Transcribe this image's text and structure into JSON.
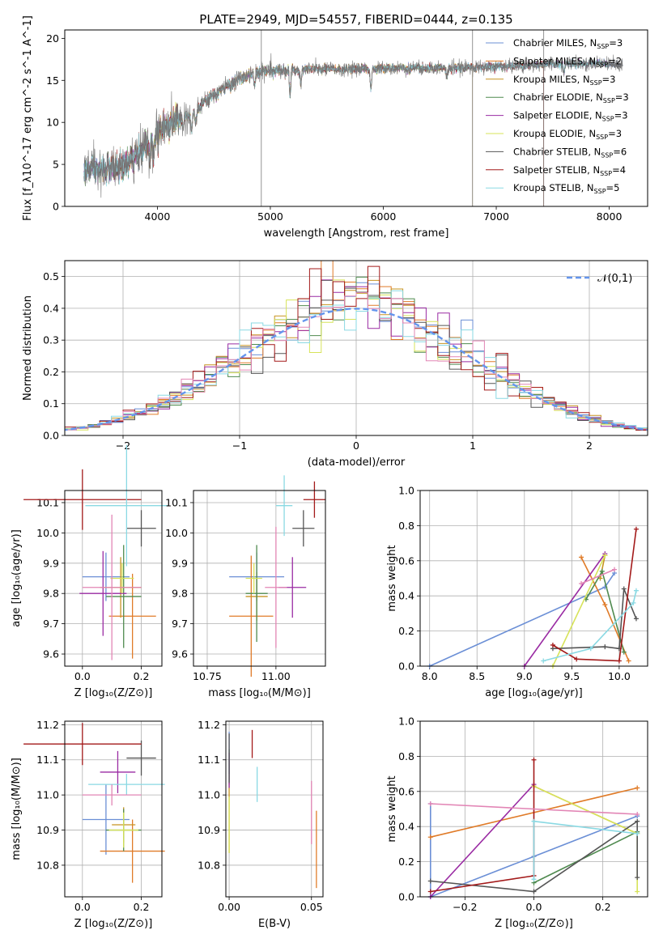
{
  "figure": {
    "title": "PLATE=2949, MJD=54557, FIBERID=0444, z=0.135"
  },
  "colors": {
    "series": [
      "#6b8fd6",
      "#e07b28",
      "#c79422",
      "#4f8a4f",
      "#9a2ba3",
      "#d7e35a",
      "#555555",
      "#a31a1a",
      "#8ad9e3"
    ],
    "pink": "#e285b5",
    "gauss": "#6495ed",
    "grid": "#b0b0b0"
  },
  "chart_data": [
    {
      "id": "spectrum",
      "type": "line",
      "title": "PLATE=2949, MJD=54557, FIBERID=0444, z=0.135",
      "xlabel": "wavelength [Angstrom, rest frame]",
      "ylabel": "Flux [f_λ10^-17 erg cm^-2 s^-1 A^-1]",
      "xlim": [
        3180,
        8340
      ],
      "ylim": [
        0,
        21
      ],
      "xticks": [
        4000,
        5000,
        6000,
        7000,
        8000
      ],
      "yticks": [
        0,
        5,
        10,
        15,
        20
      ],
      "grid": false,
      "legend_position": "upper-right",
      "legend": [
        {
          "main": "Chabrier MILES, N",
          "sub": "SSP",
          "tail": "=3"
        },
        {
          "main": "Salpeter MILES, N",
          "sub": "SSP",
          "tail": "=2"
        },
        {
          "main": "Kroupa MILES, N",
          "sub": "SSP",
          "tail": "=3"
        },
        {
          "main": "Chabrier ELODIE, N",
          "sub": "SSP",
          "tail": "=3"
        },
        {
          "main": "Salpeter ELODIE, N",
          "sub": "SSP",
          "tail": "=3"
        },
        {
          "main": "Kroupa ELODIE, N",
          "sub": "SSP",
          "tail": "=3"
        },
        {
          "main": "Chabrier STELIB, N",
          "sub": "SSP",
          "tail": "=6"
        },
        {
          "main": "Salpeter STELIB, N",
          "sub": "SSP",
          "tail": "=4"
        },
        {
          "main": "Kroupa STELIB, N",
          "sub": "SSP",
          "tail": "=5"
        }
      ],
      "continuum_nodes": [
        [
          3350,
          4.3
        ],
        [
          3500,
          4.4
        ],
        [
          3650,
          4.6
        ],
        [
          3800,
          5.6
        ],
        [
          3950,
          8.4
        ],
        [
          4100,
          10.1
        ],
        [
          4300,
          11.0
        ],
        [
          4500,
          13.2
        ],
        [
          4700,
          15.0
        ],
        [
          4900,
          16.0
        ],
        [
          5100,
          16.2
        ],
        [
          5300,
          16.3
        ],
        [
          5500,
          16.3
        ],
        [
          5700,
          16.3
        ],
        [
          5900,
          16.4
        ],
        [
          6100,
          16.5
        ],
        [
          6300,
          16.4
        ],
        [
          6500,
          16.4
        ],
        [
          6700,
          16.5
        ],
        [
          6900,
          16.6
        ],
        [
          7100,
          16.7
        ],
        [
          7300,
          16.8
        ],
        [
          7500,
          17.0
        ],
        [
          7700,
          17.0
        ],
        [
          7900,
          17.1
        ],
        [
          8100,
          16.8
        ]
      ],
      "absorption_features": [
        [
          3933,
          3.0
        ],
        [
          3968,
          2.6
        ],
        [
          4102,
          1.5
        ],
        [
          4227,
          1.2
        ],
        [
          4304,
          2.0
        ],
        [
          4340,
          1.5
        ],
        [
          4861,
          1.4
        ],
        [
          5175,
          3.2
        ],
        [
          5270,
          1.6
        ],
        [
          5890,
          2.4
        ],
        [
          6563,
          1.2
        ],
        [
          7600,
          1.2
        ]
      ],
      "model_x_range": [
        [
          3350,
          8120
        ],
        [
          3540,
          7420
        ],
        [
          3350,
          6790
        ],
        [
          3350,
          8000
        ],
        [
          3350,
          8000
        ],
        [
          3900,
          6790
        ],
        [
          3350,
          8120
        ],
        [
          3540,
          7420
        ],
        [
          3350,
          8000
        ]
      ],
      "vertical_markers": [
        4920,
        6790,
        7420
      ]
    },
    {
      "id": "residual_hist",
      "type": "histogram",
      "xlabel": "(data-model)/error",
      "ylabel": "Normed distribution",
      "xlim": [
        -2.5,
        2.5
      ],
      "ylim": [
        0,
        0.55
      ],
      "xticks": [
        -2,
        -1,
        0,
        1,
        2
      ],
      "yticks": [
        0.0,
        0.1,
        0.2,
        0.3,
        0.4,
        0.5
      ],
      "grid": true,
      "legend_position": "upper-right",
      "legend_gauss": "𝒩(0,1)",
      "bin_width": 0.1,
      "gaussian": {
        "mu": 0,
        "sigma": 1
      }
    },
    {
      "id": "age_vs_Z",
      "type": "errorbar",
      "xlabel": "Z [log₁₀(Z/Z⊙)]",
      "ylabel": "age  [log₁₀(age/yr)]",
      "xlim": [
        -0.06,
        0.27
      ],
      "ylim": [
        9.56,
        10.14
      ],
      "xticks": [
        0.0,
        0.2
      ],
      "yticks": [
        9.6,
        9.7,
        9.8,
        9.9,
        10.0,
        10.1
      ],
      "grid": true,
      "points": [
        {
          "x": 0.08,
          "xerr": 0.08,
          "y": 9.855,
          "yerr": 0.08
        },
        {
          "x": 0.17,
          "xerr": 0.08,
          "y": 9.725,
          "yerr": 0.14
        },
        {
          "x": 0.13,
          "xerr": 0.07,
          "y": 9.82,
          "yerr": 0.1
        },
        {
          "x": 0.14,
          "xerr": 0.06,
          "y": 9.79,
          "yerr": 0.17
        },
        {
          "x": 0.07,
          "xerr": 0.08,
          "y": 9.8,
          "yerr": 0.14
        },
        {
          "x": 0.135,
          "xerr": 0.04,
          "y": 9.85,
          "yerr": 0.05
        },
        {
          "x": 0.2,
          "xerr": 0.05,
          "y": 10.015,
          "yerr": 0.06
        },
        {
          "x": 0.0,
          "xerr": 0.2,
          "y": 10.11,
          "yerr": 0.1
        },
        {
          "x": 0.15,
          "xerr": 0.14,
          "y": 10.09,
          "yerr": 0.2
        },
        {
          "x": 0.1,
          "xerr": 0.1,
          "y": 9.82,
          "yerr": 0.24
        }
      ]
    },
    {
      "id": "age_vs_mass",
      "type": "errorbar",
      "xlabel": "mass [log₁₀(M/M⊙)]",
      "ylabel": "",
      "xlim": [
        10.7,
        11.18
      ],
      "ylim": [
        9.56,
        10.14
      ],
      "xticks": [
        10.75,
        11.0
      ],
      "yticks": [
        9.6,
        9.7,
        9.8,
        9.9,
        10.0,
        10.1
      ],
      "grid": true,
      "points": [
        {
          "x": 10.93,
          "xerr": 0.1,
          "y": 9.855,
          "yerr": 0.08
        },
        {
          "x": 10.91,
          "xerr": 0.08,
          "y": 9.725,
          "yerr": 0.2
        },
        {
          "x": 10.93,
          "xerr": 0.04,
          "y": 9.79,
          "yerr": 0.08
        },
        {
          "x": 10.93,
          "xerr": 0.04,
          "y": 9.8,
          "yerr": 0.16
        },
        {
          "x": 11.06,
          "xerr": 0.05,
          "y": 9.82,
          "yerr": 0.1
        },
        {
          "x": 10.92,
          "xerr": 0.03,
          "y": 9.85,
          "yerr": 0.05
        },
        {
          "x": 11.1,
          "xerr": 0.04,
          "y": 10.015,
          "yerr": 0.06
        },
        {
          "x": 11.14,
          "xerr": 0.04,
          "y": 10.11,
          "yerr": 0.06
        },
        {
          "x": 11.03,
          "xerr": 0.03,
          "y": 10.09,
          "yerr": 0.1
        },
        {
          "x": 11.0,
          "xerr": 0.04,
          "y": 9.82,
          "yerr": 0.2
        }
      ]
    },
    {
      "id": "weight_vs_age",
      "type": "line",
      "xlabel": "age  [log₁₀(age/yr)]",
      "ylabel": "mass weight",
      "xlim": [
        7.9,
        10.3
      ],
      "ylim": [
        0,
        1
      ],
      "xticks": [
        8.0,
        8.5,
        9.0,
        9.5,
        10.0
      ],
      "yticks": [
        0.0,
        0.2,
        0.4,
        0.6,
        0.8,
        1.0
      ],
      "grid": true,
      "series": [
        {
          "color": 0,
          "x": [
            8.0,
            9.85,
            9.95
          ],
          "y": [
            0.0,
            0.45,
            0.53
          ]
        },
        {
          "color": 1,
          "x": [
            9.6,
            9.85,
            10.1
          ],
          "y": [
            0.62,
            0.35,
            0.03
          ]
        },
        {
          "color": 2,
          "x": [
            9.8,
            9.85
          ],
          "y": [
            0.5,
            0.63
          ]
        },
        {
          "color": 3,
          "x": [
            9.65,
            9.82,
            10.05
          ],
          "y": [
            0.38,
            0.54,
            0.08
          ]
        },
        {
          "color": 4,
          "x": [
            9.0,
            9.85
          ],
          "y": [
            0.0,
            0.64
          ]
        },
        {
          "color": 5,
          "x": [
            9.3,
            9.85
          ],
          "y": [
            0.0,
            0.63
          ]
        },
        {
          "color": 6,
          "x": [
            9.3,
            9.85,
            10.0,
            10.05,
            10.18
          ],
          "y": [
            0.1,
            0.11,
            0.1,
            0.44,
            0.27
          ]
        },
        {
          "color": 7,
          "x": [
            9.3,
            9.55,
            10.0,
            10.18
          ],
          "y": [
            0.12,
            0.04,
            0.03,
            0.78
          ]
        },
        {
          "color": 8,
          "x": [
            9.2,
            9.7,
            10.15,
            10.18
          ],
          "y": [
            0.03,
            0.1,
            0.36,
            0.43
          ]
        },
        {
          "color": "pink",
          "x": [
            9.6,
            9.95
          ],
          "y": [
            0.47,
            0.55
          ]
        }
      ]
    },
    {
      "id": "mass_vs_Z",
      "type": "errorbar",
      "xlabel": "Z [log₁₀(Z/Z⊙)]",
      "ylabel": "mass [log₁₀(M/M⊙)]",
      "xlim": [
        -0.06,
        0.27
      ],
      "ylim": [
        10.71,
        11.21
      ],
      "xticks": [
        0.0,
        0.2
      ],
      "yticks": [
        10.8,
        10.9,
        11.0,
        11.1,
        11.2
      ],
      "grid": true,
      "points": [
        {
          "x": 0.08,
          "xerr": 0.08,
          "y": 10.93,
          "yerr": 0.1
        },
        {
          "x": 0.17,
          "xerr": 0.11,
          "y": 10.84,
          "yerr": 0.09
        },
        {
          "x": 0.14,
          "xerr": 0.04,
          "y": 10.915,
          "yerr": 0.05
        },
        {
          "x": 0.14,
          "xerr": 0.06,
          "y": 10.9,
          "yerr": 0.06
        },
        {
          "x": 0.12,
          "xerr": 0.06,
          "y": 11.065,
          "yerr": 0.06
        },
        {
          "x": 0.14,
          "xerr": 0.05,
          "y": 10.9,
          "yerr": 0.05
        },
        {
          "x": 0.2,
          "xerr": 0.05,
          "y": 11.105,
          "yerr": 0.05
        },
        {
          "x": 0.0,
          "xerr": 0.2,
          "y": 11.145,
          "yerr": 0.06
        },
        {
          "x": 0.15,
          "xerr": 0.13,
          "y": 11.03,
          "yerr": 0.03
        },
        {
          "x": 0.1,
          "xerr": 0.1,
          "y": 11.0,
          "yerr": 0.03
        }
      ]
    },
    {
      "id": "mass_vs_ebv",
      "type": "errorbar",
      "xlabel": "E(B-V)",
      "ylabel": "",
      "xlim": [
        -0.002,
        0.057
      ],
      "ylim": [
        10.71,
        11.21
      ],
      "xticks": [
        0.0,
        0.05
      ],
      "yticks": [
        10.8,
        10.9,
        11.0,
        11.1,
        11.2
      ],
      "grid": true,
      "points": [
        {
          "x": 0.0,
          "xerr": 0,
          "y": 11.12,
          "yerr": 0.06
        },
        {
          "x": 0.053,
          "xerr": 0,
          "y": 10.845,
          "yerr": 0.11
        },
        {
          "x": 0.0,
          "xerr": 0,
          "y": 10.935,
          "yerr": 0.1
        },
        {
          "x": 0.0,
          "xerr": 0,
          "y": 11.08,
          "yerr": 0.05
        },
        {
          "x": 0.0,
          "xerr": 0,
          "y": 11.07,
          "yerr": 0.05
        },
        {
          "x": 0.0,
          "xerr": 0,
          "y": 10.915,
          "yerr": 0.08
        },
        {
          "x": 0.0,
          "xerr": 0,
          "y": 11.105,
          "yerr": 0.07
        },
        {
          "x": 0.014,
          "xerr": 0,
          "y": 11.145,
          "yerr": 0.04
        },
        {
          "x": 0.017,
          "xerr": 0,
          "y": 11.03,
          "yerr": 0.05
        },
        {
          "x": 0.05,
          "xerr": 0,
          "y": 10.95,
          "yerr": 0.09
        }
      ]
    },
    {
      "id": "weight_vs_Z",
      "type": "line",
      "xlabel": "Z [log₁₀(Z/Z⊙)]",
      "ylabel": "mass weight",
      "xlim": [
        -0.33,
        0.33
      ],
      "ylim": [
        0,
        1
      ],
      "xticks": [
        -0.2,
        0.0,
        0.2
      ],
      "yticks": [
        0.0,
        0.2,
        0.4,
        0.6,
        0.8,
        1.0
      ],
      "grid": true,
      "series": [
        {
          "color": 0,
          "x": [
            -0.3,
            -0.3,
            0.0,
            0.3
          ],
          "y": [
            0.53,
            0.0,
            0.23,
            0.46
          ]
        },
        {
          "color": 1,
          "x": [
            -0.3,
            0.3
          ],
          "y": [
            0.34,
            0.62
          ]
        },
        {
          "color": 2,
          "x": [
            0.0,
            0.3
          ],
          "y": [
            0.63,
            0.36
          ]
        },
        {
          "color": 3,
          "x": [
            0.0,
            0.3
          ],
          "y": [
            0.08,
            0.37
          ]
        },
        {
          "color": 4,
          "x": [
            -0.3,
            0.0
          ],
          "y": [
            0.0,
            0.64
          ]
        },
        {
          "color": 5,
          "x": [
            0.0,
            0.3,
            0.3
          ],
          "y": [
            0.63,
            0.36,
            0.03
          ]
        },
        {
          "color": 6,
          "x": [
            -0.3,
            0.0,
            0.3,
            0.3
          ],
          "y": [
            0.09,
            0.03,
            0.43,
            0.11
          ]
        },
        {
          "color": 7,
          "x": [
            -0.3,
            0.0,
            0.0
          ],
          "y": [
            0.03,
            0.12,
            0.78
          ]
        },
        {
          "color": 8,
          "x": [
            0.0,
            0.0,
            0.3
          ],
          "y": [
            0.1,
            0.43,
            0.36
          ]
        },
        {
          "color": "pink",
          "x": [
            -0.3,
            0.3
          ],
          "y": [
            0.53,
            0.47
          ]
        }
      ]
    }
  ]
}
